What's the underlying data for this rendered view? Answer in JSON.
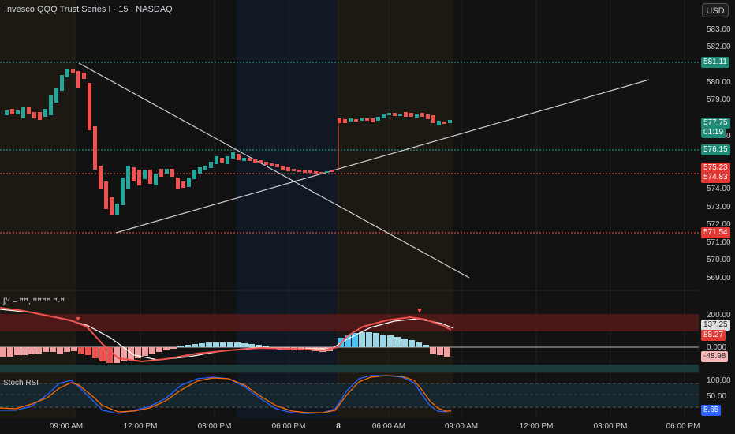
{
  "header": {
    "title": "Invesco QQQ Trust Series I · 15 · NASDAQ",
    "currency": "USD"
  },
  "price_axis": {
    "ticks": [
      "583.00",
      "582.00",
      "580.00",
      "579.00",
      "576.00",
      "574.00",
      "573.00",
      "572.00",
      "571.00",
      "570.00",
      "569.00"
    ]
  },
  "price_tags": {
    "t581": {
      "text": "581.11",
      "color": "#1f8a75"
    },
    "t577": {
      "text": "577.75",
      "color": "#1f8a75"
    },
    "t577b": {
      "text": "01:19",
      "color": "#1f8a75"
    },
    "t576": {
      "text": "576.15",
      "color": "#1f8a75"
    },
    "t575": {
      "text": "575.23",
      "color": "#e53935"
    },
    "t574": {
      "text": "574.83",
      "color": "#e53935"
    },
    "t571": {
      "text": "571.54",
      "color": "#e53935"
    }
  },
  "macd": {
    "label": "ʃ/ᐟ – ꟸꟸ, ꟸꟸꟸꟸ ꟸ-ꟸ",
    "ticks": [
      "200.00",
      "0.000"
    ],
    "tag_137": "137.25",
    "tag_88": "88.27",
    "tag_neg": "-48.98"
  },
  "rsi": {
    "label": "Stoch RSI",
    "ticks": [
      "100.00",
      "50.00"
    ],
    "tag": "8.65"
  },
  "time_axis": [
    "09:00 AM",
    "12:00 PM",
    "03:00 PM",
    "06:00 PM",
    "8",
    "06:00 AM",
    "09:00 AM",
    "12:00 PM",
    "03:00 PM",
    "06:00 PM"
  ],
  "colors": {
    "up": "#26a69a",
    "down": "#ef5350",
    "line": "#cfcfcf"
  }
}
